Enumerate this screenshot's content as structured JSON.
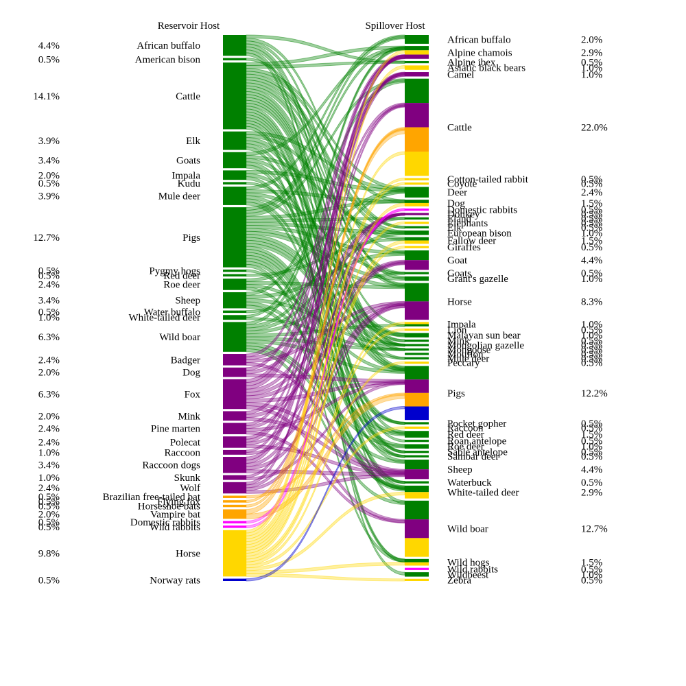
{
  "chart_data": {
    "type": "sankey",
    "title": "",
    "left_header": "Reservoir Host",
    "right_header": "Spillover Host",
    "group_colors": {
      "ungulate": "#008000",
      "carnivore": "#800080",
      "bat": "#FFA500",
      "lagomorph": "#FF00FF",
      "equid": "#FFD700",
      "rodent": "#0000CD"
    },
    "reservoir_hosts": [
      {
        "name": "African buffalo",
        "pct": "4.4%",
        "value": 4.4,
        "group": "ungulate"
      },
      {
        "name": "American bison",
        "pct": "0.5%",
        "value": 0.5,
        "group": "ungulate"
      },
      {
        "name": "Cattle",
        "pct": "14.1%",
        "value": 14.1,
        "group": "ungulate"
      },
      {
        "name": "Elk",
        "pct": "3.9%",
        "value": 3.9,
        "group": "ungulate"
      },
      {
        "name": "Goats",
        "pct": "3.4%",
        "value": 3.4,
        "group": "ungulate"
      },
      {
        "name": "Impala",
        "pct": "2.0%",
        "value": 2.0,
        "group": "ungulate"
      },
      {
        "name": "Kudu",
        "pct": "0.5%",
        "value": 0.5,
        "group": "ungulate"
      },
      {
        "name": "Mule deer",
        "pct": "3.9%",
        "value": 3.9,
        "group": "ungulate"
      },
      {
        "name": "Pigs",
        "pct": "12.7%",
        "value": 12.7,
        "group": "ungulate"
      },
      {
        "name": "Pygmy hogs",
        "pct": "0.5%",
        "value": 0.5,
        "group": "ungulate"
      },
      {
        "name": "Red deer",
        "pct": "0.5%",
        "value": 0.5,
        "group": "ungulate"
      },
      {
        "name": "Roe deer",
        "pct": "2.4%",
        "value": 2.4,
        "group": "ungulate"
      },
      {
        "name": "Sheep",
        "pct": "3.4%",
        "value": 3.4,
        "group": "ungulate"
      },
      {
        "name": "Water buffalo",
        "pct": "0.5%",
        "value": 0.5,
        "group": "ungulate"
      },
      {
        "name": "White-tailed deer",
        "pct": "1.0%",
        "value": 1.0,
        "group": "ungulate"
      },
      {
        "name": "Wild boar",
        "pct": "6.3%",
        "value": 6.3,
        "group": "ungulate"
      },
      {
        "name": "Badger",
        "pct": "2.4%",
        "value": 2.4,
        "group": "carnivore"
      },
      {
        "name": "Dog",
        "pct": "2.0%",
        "value": 2.0,
        "group": "carnivore"
      },
      {
        "name": "Fox",
        "pct": "6.3%",
        "value": 6.3,
        "group": "carnivore"
      },
      {
        "name": "Mink",
        "pct": "2.0%",
        "value": 2.0,
        "group": "carnivore"
      },
      {
        "name": "Pine marten",
        "pct": "2.4%",
        "value": 2.4,
        "group": "carnivore"
      },
      {
        "name": "Polecat",
        "pct": "2.4%",
        "value": 2.4,
        "group": "carnivore"
      },
      {
        "name": "Raccoon",
        "pct": "1.0%",
        "value": 1.0,
        "group": "carnivore"
      },
      {
        "name": "Raccoon dogs",
        "pct": "3.4%",
        "value": 3.4,
        "group": "carnivore"
      },
      {
        "name": "Skunk",
        "pct": "1.0%",
        "value": 1.0,
        "group": "carnivore"
      },
      {
        "name": "Wolf",
        "pct": "2.4%",
        "value": 2.4,
        "group": "carnivore"
      },
      {
        "name": "Brazilian free-tailed bat",
        "pct": "0.5%",
        "value": 0.5,
        "group": "bat"
      },
      {
        "name": "Flying fox",
        "pct": "0.5%",
        "value": 0.5,
        "group": "bat"
      },
      {
        "name": "Horseshoe bats",
        "pct": "0.5%",
        "value": 0.5,
        "group": "bat"
      },
      {
        "name": "Vampire bat",
        "pct": "2.0%",
        "value": 2.0,
        "group": "bat"
      },
      {
        "name": "Domestic rabbits",
        "pct": "0.5%",
        "value": 0.5,
        "group": "lagomorph"
      },
      {
        "name": "Wild rabbits",
        "pct": "0.5%",
        "value": 0.5,
        "group": "lagomorph"
      },
      {
        "name": "Horse",
        "pct": "9.8%",
        "value": 9.8,
        "group": "equid"
      },
      {
        "name": "Norway rats",
        "pct": "0.5%",
        "value": 0.5,
        "group": "rodent"
      }
    ],
    "spillover_hosts": [
      {
        "name": "African buffalo",
        "pct": "2.0%",
        "value": 2.0,
        "segments": [
          "ungulate"
        ]
      },
      {
        "name": "Alpine chamois",
        "pct": "2.9%",
        "value": 2.9,
        "segments": [
          "ungulate",
          "equid",
          "carnivore"
        ]
      },
      {
        "name": "Alpine ibex",
        "pct": "0.5%",
        "value": 0.5,
        "segments": [
          "ungulate"
        ]
      },
      {
        "name": "Asiatic black bears",
        "pct": "1.0%",
        "value": 1.0,
        "segments": [
          "equid"
        ]
      },
      {
        "name": "Camel",
        "pct": "1.0%",
        "value": 1.0,
        "segments": [
          "carnivore"
        ]
      },
      {
        "name": "Cattle",
        "pct": "22.0%",
        "value": 22.0,
        "segments": [
          "ungulate",
          "carnivore",
          "bat",
          "equid"
        ]
      },
      {
        "name": "Cotton-tailed rabbit",
        "pct": "0.5%",
        "value": 0.5,
        "segments": [
          "equid"
        ]
      },
      {
        "name": "Coyote",
        "pct": "0.5%",
        "value": 0.5,
        "segments": [
          "equid"
        ]
      },
      {
        "name": "Deer",
        "pct": "2.4%",
        "value": 2.4,
        "segments": [
          "ungulate"
        ]
      },
      {
        "name": "Dog",
        "pct": "1.5%",
        "value": 1.5,
        "segments": [
          "ungulate",
          "equid"
        ]
      },
      {
        "name": "Domestic rabbits",
        "pct": "0.5%",
        "value": 0.5,
        "segments": [
          "lagomorph"
        ]
      },
      {
        "name": "Donkey",
        "pct": "0.5%",
        "value": 0.5,
        "segments": [
          "carnivore"
        ]
      },
      {
        "name": "Eland",
        "pct": "0.5%",
        "value": 0.5,
        "segments": [
          "ungulate"
        ]
      },
      {
        "name": "Elephants",
        "pct": "0.5%",
        "value": 0.5,
        "segments": [
          "equid"
        ]
      },
      {
        "name": "Elk",
        "pct": "0.5%",
        "value": 0.5,
        "segments": [
          "ungulate"
        ]
      },
      {
        "name": "European bison",
        "pct": "1.0%",
        "value": 1.0,
        "segments": [
          "ungulate"
        ]
      },
      {
        "name": "Fallow deer",
        "pct": "1.5%",
        "value": 1.5,
        "segments": [
          "ungulate",
          "equid"
        ]
      },
      {
        "name": "Giraffes",
        "pct": "0.5%",
        "value": 0.5,
        "segments": [
          "equid"
        ]
      },
      {
        "name": "Goat",
        "pct": "4.4%",
        "value": 4.4,
        "segments": [
          "ungulate",
          "carnivore"
        ]
      },
      {
        "name": "Goats",
        "pct": "0.5%",
        "value": 0.5,
        "segments": [
          "ungulate"
        ]
      },
      {
        "name": "Grant's gazelle",
        "pct": "1.0%",
        "value": 1.0,
        "segments": [
          "ungulate"
        ]
      },
      {
        "name": "Horse",
        "pct": "8.3%",
        "value": 8.3,
        "segments": [
          "ungulate",
          "carnivore"
        ]
      },
      {
        "name": "Impala",
        "pct": "1.0%",
        "value": 1.0,
        "segments": [
          "equid",
          "ungulate"
        ]
      },
      {
        "name": "Lion",
        "pct": "0.5%",
        "value": 0.5,
        "segments": [
          "equid"
        ]
      },
      {
        "name": "Malayan sun bear",
        "pct": "1.0%",
        "value": 1.0,
        "segments": [
          "ungulate"
        ]
      },
      {
        "name": "Mink",
        "pct": "0.5%",
        "value": 0.5,
        "segments": [
          "ungulate"
        ]
      },
      {
        "name": "Mongolian gazelle",
        "pct": "0.5%",
        "value": 0.5,
        "segments": [
          "ungulate"
        ]
      },
      {
        "name": "Mongoose",
        "pct": "0.5%",
        "value": 0.5,
        "segments": [
          "ungulate"
        ]
      },
      {
        "name": "Mouflon",
        "pct": "0.5%",
        "value": 0.5,
        "segments": [
          "ungulate"
        ]
      },
      {
        "name": "Mule deer",
        "pct": "0.5%",
        "value": 0.5,
        "segments": [
          "ungulate"
        ]
      },
      {
        "name": "Peccary",
        "pct": "0.5%",
        "value": 0.5,
        "segments": [
          "equid"
        ]
      },
      {
        "name": "Pigs",
        "pct": "12.2%",
        "value": 12.2,
        "segments": [
          "ungulate",
          "carnivore",
          "bat",
          "rodent"
        ]
      },
      {
        "name": "Pocket gopher",
        "pct": "0.5%",
        "value": 0.5,
        "segments": [
          "ungulate"
        ]
      },
      {
        "name": "Raccoon",
        "pct": "0.5%",
        "value": 0.5,
        "segments": [
          "equid"
        ]
      },
      {
        "name": "Red deer",
        "pct": "1.5%",
        "value": 1.5,
        "segments": [
          "ungulate"
        ]
      },
      {
        "name": "Roan antelope",
        "pct": "0.5%",
        "value": 0.5,
        "segments": [
          "ungulate"
        ]
      },
      {
        "name": "Roe deer",
        "pct": "1.0%",
        "value": 1.0,
        "segments": [
          "ungulate"
        ]
      },
      {
        "name": "Sable antelope",
        "pct": "0.5%",
        "value": 0.5,
        "segments": [
          "ungulate"
        ]
      },
      {
        "name": "Sambar deer",
        "pct": "0.5%",
        "value": 0.5,
        "segments": [
          "ungulate"
        ]
      },
      {
        "name": "Sheep",
        "pct": "4.4%",
        "value": 4.4,
        "segments": [
          "ungulate",
          "carnivore"
        ]
      },
      {
        "name": "Waterbuck",
        "pct": "0.5%",
        "value": 0.5,
        "segments": [
          "ungulate"
        ]
      },
      {
        "name": "White-tailed deer",
        "pct": "2.9%",
        "value": 2.9,
        "segments": [
          "ungulate",
          "equid"
        ]
      },
      {
        "name": "Wild boar",
        "pct": "12.7%",
        "value": 12.7,
        "segments": [
          "ungulate",
          "carnivore",
          "equid"
        ]
      },
      {
        "name": "Wild hogs",
        "pct": "1.5%",
        "value": 1.5,
        "segments": [
          "ungulate",
          "equid"
        ]
      },
      {
        "name": "Wild rabbits",
        "pct": "0.5%",
        "value": 0.5,
        "segments": [
          "lagomorph"
        ]
      },
      {
        "name": "Wildbeest",
        "pct": "1.0%",
        "value": 1.0,
        "segments": [
          "ungulate"
        ]
      },
      {
        "name": "Zebra",
        "pct": "0.5%",
        "value": 0.5,
        "segments": [
          "equid"
        ]
      }
    ]
  }
}
